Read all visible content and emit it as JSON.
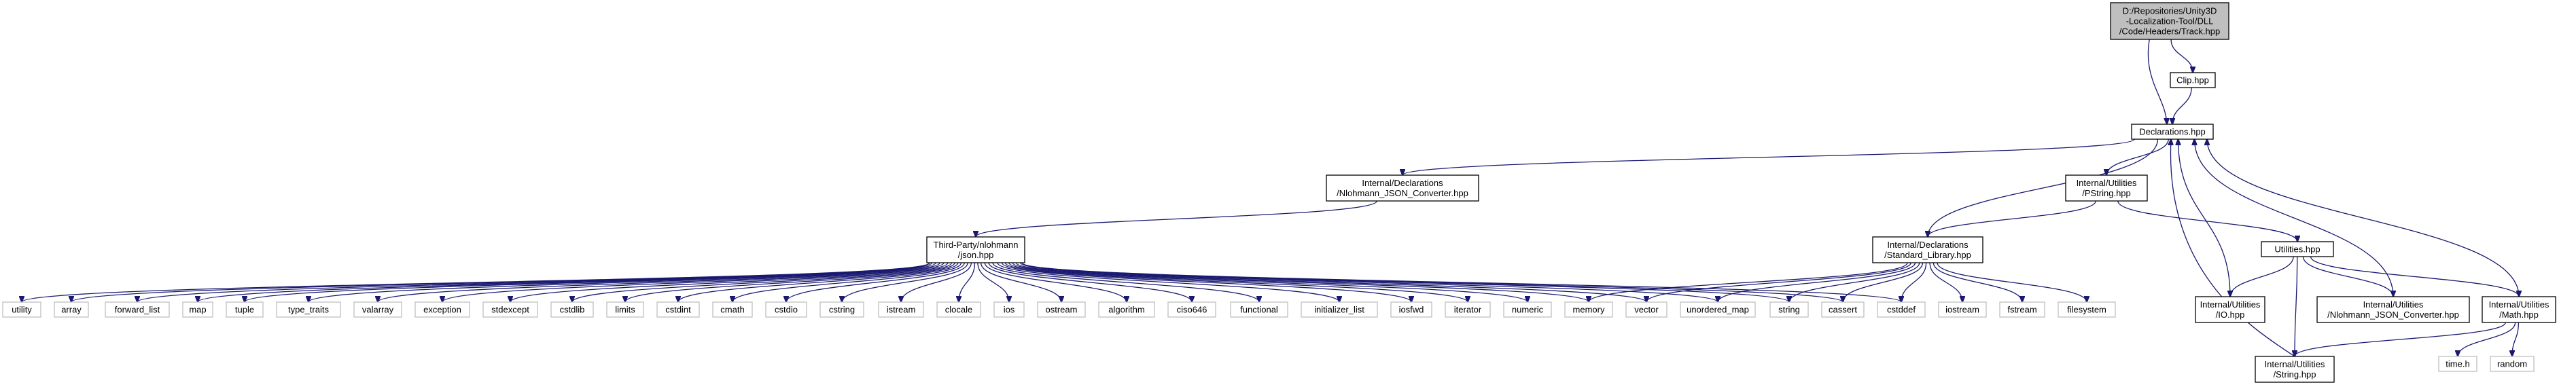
{
  "colors": {
    "edge": "#191970",
    "node_border": "#000000",
    "leaf_border": "#bfbfbf",
    "root_fill": "#bfbfbf",
    "node_fill": "#ffffff"
  },
  "nodes": [
    {
      "id": "track",
      "lines": [
        "D:/Repositories/Unity3D",
        "-Localization-Tool/DLL",
        "/Code/Headers/Track.hpp"
      ],
      "kind": "root"
    },
    {
      "id": "clip",
      "lines": [
        "Clip.hpp"
      ],
      "kind": "node"
    },
    {
      "id": "declarations",
      "lines": [
        "Declarations.hpp"
      ],
      "kind": "node"
    },
    {
      "id": "nlohmann_conv_decl",
      "lines": [
        "Internal/Declarations",
        "/Nlohmann_JSON_Converter.hpp"
      ],
      "kind": "node"
    },
    {
      "id": "pstring",
      "lines": [
        "Internal/Utilities",
        "/PString.hpp"
      ],
      "kind": "node"
    },
    {
      "id": "json",
      "lines": [
        "Third-Party/nlohmann",
        "/json.hpp"
      ],
      "kind": "node"
    },
    {
      "id": "stdlib_decl",
      "lines": [
        "Internal/Declarations",
        "/Standard_Library.hpp"
      ],
      "kind": "node"
    },
    {
      "id": "utilities",
      "lines": [
        "Utilities.hpp"
      ],
      "kind": "node"
    },
    {
      "id": "io",
      "lines": [
        "Internal/Utilities",
        "/IO.hpp"
      ],
      "kind": "node"
    },
    {
      "id": "nlohmann_conv_util",
      "lines": [
        "Internal/Utilities",
        "/Nlohmann_JSON_Converter.hpp"
      ],
      "kind": "node"
    },
    {
      "id": "math",
      "lines": [
        "Internal/Utilities",
        "/Math.hpp"
      ],
      "kind": "node"
    },
    {
      "id": "string_util",
      "lines": [
        "Internal/Utilities",
        "/String.hpp"
      ],
      "kind": "node"
    },
    {
      "id": "utility",
      "lines": [
        "utility"
      ],
      "kind": "leaf"
    },
    {
      "id": "array",
      "lines": [
        "array"
      ],
      "kind": "leaf"
    },
    {
      "id": "forward_list",
      "lines": [
        "forward_list"
      ],
      "kind": "leaf"
    },
    {
      "id": "map",
      "lines": [
        "map"
      ],
      "kind": "leaf"
    },
    {
      "id": "tuple",
      "lines": [
        "tuple"
      ],
      "kind": "leaf"
    },
    {
      "id": "type_traits",
      "lines": [
        "type_traits"
      ],
      "kind": "leaf"
    },
    {
      "id": "valarray",
      "lines": [
        "valarray"
      ],
      "kind": "leaf"
    },
    {
      "id": "exception",
      "lines": [
        "exception"
      ],
      "kind": "leaf"
    },
    {
      "id": "stdexcept",
      "lines": [
        "stdexcept"
      ],
      "kind": "leaf"
    },
    {
      "id": "cstdlib",
      "lines": [
        "cstdlib"
      ],
      "kind": "leaf"
    },
    {
      "id": "limits",
      "lines": [
        "limits"
      ],
      "kind": "leaf"
    },
    {
      "id": "cstdint",
      "lines": [
        "cstdint"
      ],
      "kind": "leaf"
    },
    {
      "id": "cmath",
      "lines": [
        "cmath"
      ],
      "kind": "leaf"
    },
    {
      "id": "cstdio",
      "lines": [
        "cstdio"
      ],
      "kind": "leaf"
    },
    {
      "id": "cstring",
      "lines": [
        "cstring"
      ],
      "kind": "leaf"
    },
    {
      "id": "istream",
      "lines": [
        "istream"
      ],
      "kind": "leaf"
    },
    {
      "id": "clocale",
      "lines": [
        "clocale"
      ],
      "kind": "leaf"
    },
    {
      "id": "ios",
      "lines": [
        "ios"
      ],
      "kind": "leaf"
    },
    {
      "id": "ostream",
      "lines": [
        "ostream"
      ],
      "kind": "leaf"
    },
    {
      "id": "algorithm",
      "lines": [
        "algorithm"
      ],
      "kind": "leaf"
    },
    {
      "id": "ciso646",
      "lines": [
        "ciso646"
      ],
      "kind": "leaf"
    },
    {
      "id": "functional",
      "lines": [
        "functional"
      ],
      "kind": "leaf"
    },
    {
      "id": "initializer_list",
      "lines": [
        "initializer_list"
      ],
      "kind": "leaf"
    },
    {
      "id": "iosfwd",
      "lines": [
        "iosfwd"
      ],
      "kind": "leaf"
    },
    {
      "id": "iterator",
      "lines": [
        "iterator"
      ],
      "kind": "leaf"
    },
    {
      "id": "numeric",
      "lines": [
        "numeric"
      ],
      "kind": "leaf"
    },
    {
      "id": "memory",
      "lines": [
        "memory"
      ],
      "kind": "leaf"
    },
    {
      "id": "vector",
      "lines": [
        "vector"
      ],
      "kind": "leaf"
    },
    {
      "id": "unordered_map",
      "lines": [
        "unordered_map"
      ],
      "kind": "leaf"
    },
    {
      "id": "string",
      "lines": [
        "string"
      ],
      "kind": "leaf"
    },
    {
      "id": "cassert",
      "lines": [
        "cassert"
      ],
      "kind": "leaf"
    },
    {
      "id": "cstddef",
      "lines": [
        "cstddef"
      ],
      "kind": "leaf"
    },
    {
      "id": "iostream",
      "lines": [
        "iostream"
      ],
      "kind": "leaf"
    },
    {
      "id": "fstream",
      "lines": [
        "fstream"
      ],
      "kind": "leaf"
    },
    {
      "id": "filesystem",
      "lines": [
        "filesystem"
      ],
      "kind": "leaf"
    },
    {
      "id": "time_h",
      "lines": [
        "time.h"
      ],
      "kind": "leaf"
    },
    {
      "id": "random",
      "lines": [
        "random"
      ],
      "kind": "leaf"
    }
  ],
  "edges": [
    [
      "track",
      "clip"
    ],
    [
      "track",
      "declarations"
    ],
    [
      "clip",
      "declarations"
    ],
    [
      "declarations",
      "nlohmann_conv_decl"
    ],
    [
      "declarations",
      "pstring"
    ],
    [
      "declarations",
      "stdlib_decl"
    ],
    [
      "nlohmann_conv_decl",
      "json"
    ],
    [
      "pstring",
      "stdlib_decl"
    ],
    [
      "pstring",
      "utilities"
    ],
    [
      "json",
      "utility"
    ],
    [
      "json",
      "array"
    ],
    [
      "json",
      "forward_list"
    ],
    [
      "json",
      "map"
    ],
    [
      "json",
      "tuple"
    ],
    [
      "json",
      "type_traits"
    ],
    [
      "json",
      "valarray"
    ],
    [
      "json",
      "exception"
    ],
    [
      "json",
      "stdexcept"
    ],
    [
      "json",
      "cstdlib"
    ],
    [
      "json",
      "limits"
    ],
    [
      "json",
      "cstdint"
    ],
    [
      "json",
      "cmath"
    ],
    [
      "json",
      "cstdio"
    ],
    [
      "json",
      "cstring"
    ],
    [
      "json",
      "istream"
    ],
    [
      "json",
      "clocale"
    ],
    [
      "json",
      "ios"
    ],
    [
      "json",
      "ostream"
    ],
    [
      "json",
      "algorithm"
    ],
    [
      "json",
      "ciso646"
    ],
    [
      "json",
      "functional"
    ],
    [
      "json",
      "initializer_list"
    ],
    [
      "json",
      "iosfwd"
    ],
    [
      "json",
      "iterator"
    ],
    [
      "json",
      "numeric"
    ],
    [
      "json",
      "memory"
    ],
    [
      "json",
      "vector"
    ],
    [
      "json",
      "unordered_map"
    ],
    [
      "json",
      "string"
    ],
    [
      "json",
      "cassert"
    ],
    [
      "json",
      "cstddef"
    ],
    [
      "stdlib_decl",
      "memory"
    ],
    [
      "stdlib_decl",
      "vector"
    ],
    [
      "stdlib_decl",
      "unordered_map"
    ],
    [
      "stdlib_decl",
      "string"
    ],
    [
      "stdlib_decl",
      "cassert"
    ],
    [
      "stdlib_decl",
      "cstddef"
    ],
    [
      "stdlib_decl",
      "iostream"
    ],
    [
      "stdlib_decl",
      "fstream"
    ],
    [
      "stdlib_decl",
      "filesystem"
    ],
    [
      "utilities",
      "io"
    ],
    [
      "utilities",
      "nlohmann_conv_util"
    ],
    [
      "utilities",
      "math"
    ],
    [
      "utilities",
      "string_util"
    ],
    [
      "io",
      "declarations"
    ],
    [
      "nlohmann_conv_util",
      "declarations"
    ],
    [
      "math",
      "declarations"
    ],
    [
      "string_util",
      "declarations"
    ],
    [
      "math",
      "time_h"
    ],
    [
      "math",
      "random"
    ],
    [
      "math",
      "string_util"
    ]
  ]
}
